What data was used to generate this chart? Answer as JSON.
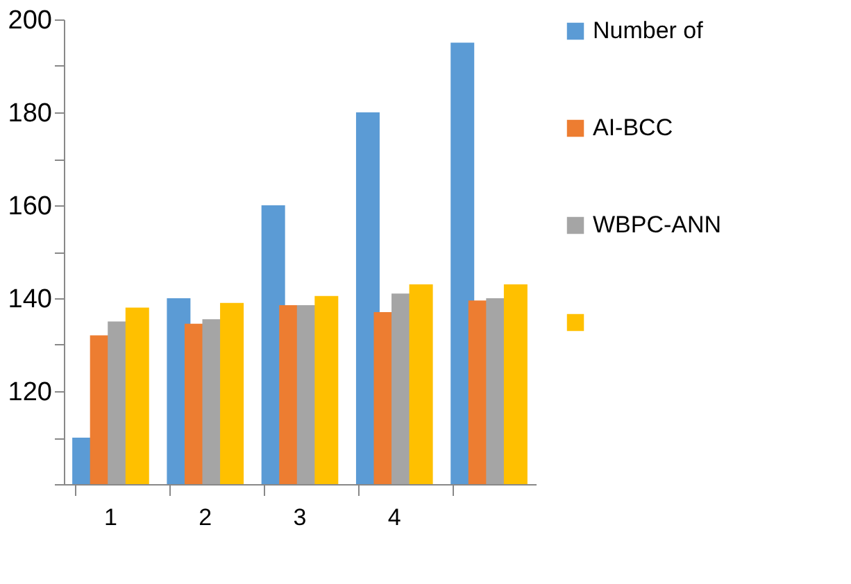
{
  "chart_data": {
    "type": "bar",
    "categories": [
      "1",
      "2",
      "3",
      "4",
      null
    ],
    "series": [
      {
        "name": "Number of",
        "color": "#5b9bd5",
        "values": [
          110,
          140,
          160,
          180,
          195
        ]
      },
      {
        "name": "AI-BCC",
        "color": "#ed7d31",
        "values": [
          132,
          134.5,
          138.5,
          137,
          139.5
        ]
      },
      {
        "name": "WBPC-ANN",
        "color": "#a5a5a5",
        "values": [
          135,
          135.5,
          138.5,
          141,
          140
        ]
      },
      {
        "color": "#ffc000",
        "values": [
          138,
          139,
          140.5,
          143,
          143
        ]
      }
    ],
    "ylim": [
      100,
      200
    ],
    "yticks": [
      {
        "value": 100,
        "label": null
      },
      {
        "value": 110,
        "label": null
      },
      120,
      {
        "value": 130,
        "label": null
      },
      140,
      {
        "value": 150,
        "label": null
      },
      160,
      {
        "value": 170,
        "label": null
      },
      180,
      {
        "value": 190,
        "label": null
      },
      200
    ],
    "grid": false,
    "legend": "right"
  }
}
